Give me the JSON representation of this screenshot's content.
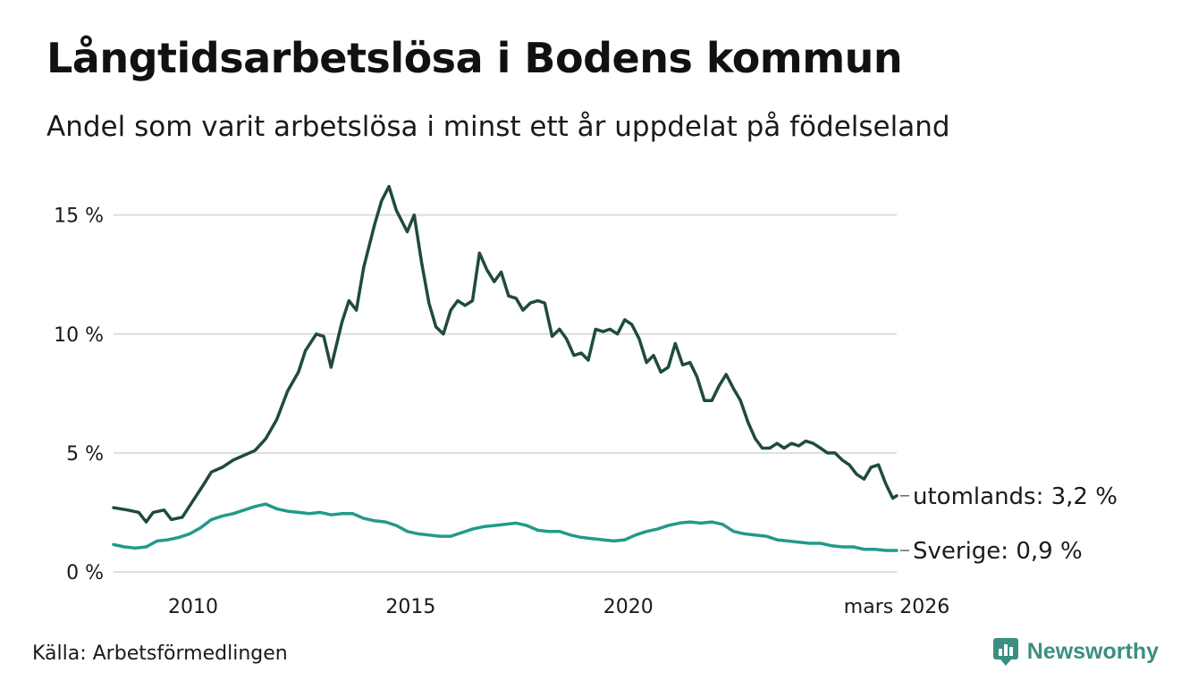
{
  "header": {
    "title": "Långtidsarbetslösa i Bodens kommun",
    "subtitle": "Andel som varit arbetslösa i minst ett år uppdelat på födelseland"
  },
  "footer": {
    "source": "Källa: Arbetsförmedlingen",
    "brand": "Newsworthy"
  },
  "colors": {
    "foreign": "#1f4a40",
    "sweden": "#229a8a",
    "grid": "#dddddd",
    "brand": "#3a8f82"
  },
  "chart_data": {
    "type": "line",
    "title": "Långtidsarbetslösa i Bodens kommun",
    "xlabel": "",
    "ylabel": "",
    "xlim": [
      2008.17,
      2026.17
    ],
    "ylim": [
      0,
      16
    ],
    "y_ticks": [
      0,
      5,
      10,
      15
    ],
    "y_tick_labels": [
      "0 %",
      "5 %",
      "10 %",
      "15 %"
    ],
    "x_ticks": [
      2010,
      2015,
      2020,
      2026.17
    ],
    "x_tick_labels": [
      "2010",
      "2015",
      "2020",
      "mars 2026"
    ],
    "series": [
      {
        "name": "utomlands",
        "end_label": "utomlands: 3,2 %",
        "points": [
          [
            2008.17,
            2.7
          ],
          [
            2008.5,
            2.6
          ],
          [
            2008.75,
            2.5
          ],
          [
            2008.92,
            2.1
          ],
          [
            2009.08,
            2.5
          ],
          [
            2009.33,
            2.6
          ],
          [
            2009.5,
            2.2
          ],
          [
            2009.75,
            2.3
          ],
          [
            2010.0,
            3.0
          ],
          [
            2010.25,
            3.7
          ],
          [
            2010.42,
            4.2
          ],
          [
            2010.67,
            4.4
          ],
          [
            2010.92,
            4.7
          ],
          [
            2011.17,
            4.9
          ],
          [
            2011.42,
            5.1
          ],
          [
            2011.67,
            5.6
          ],
          [
            2011.92,
            6.4
          ],
          [
            2012.17,
            7.6
          ],
          [
            2012.42,
            8.4
          ],
          [
            2012.58,
            9.3
          ],
          [
            2012.83,
            10.0
          ],
          [
            2013.0,
            9.9
          ],
          [
            2013.17,
            8.6
          ],
          [
            2013.42,
            10.5
          ],
          [
            2013.58,
            11.4
          ],
          [
            2013.75,
            11.0
          ],
          [
            2013.92,
            12.8
          ],
          [
            2014.17,
            14.6
          ],
          [
            2014.33,
            15.6
          ],
          [
            2014.5,
            16.2
          ],
          [
            2014.67,
            15.2
          ],
          [
            2014.92,
            14.3
          ],
          [
            2015.08,
            15.0
          ],
          [
            2015.25,
            13.0
          ],
          [
            2015.42,
            11.3
          ],
          [
            2015.58,
            10.3
          ],
          [
            2015.75,
            10.0
          ],
          [
            2015.92,
            11.0
          ],
          [
            2016.08,
            11.4
          ],
          [
            2016.25,
            11.2
          ],
          [
            2016.42,
            11.4
          ],
          [
            2016.58,
            13.4
          ],
          [
            2016.75,
            12.7
          ],
          [
            2016.92,
            12.2
          ],
          [
            2017.08,
            12.6
          ],
          [
            2017.25,
            11.6
          ],
          [
            2017.42,
            11.5
          ],
          [
            2017.58,
            11.0
          ],
          [
            2017.75,
            11.3
          ],
          [
            2017.92,
            11.4
          ],
          [
            2018.08,
            11.3
          ],
          [
            2018.25,
            9.9
          ],
          [
            2018.42,
            10.2
          ],
          [
            2018.58,
            9.8
          ],
          [
            2018.75,
            9.1
          ],
          [
            2018.92,
            9.2
          ],
          [
            2019.08,
            8.9
          ],
          [
            2019.25,
            10.2
          ],
          [
            2019.42,
            10.1
          ],
          [
            2019.58,
            10.2
          ],
          [
            2019.75,
            10.0
          ],
          [
            2019.92,
            10.6
          ],
          [
            2020.08,
            10.4
          ],
          [
            2020.25,
            9.8
          ],
          [
            2020.42,
            8.8
          ],
          [
            2020.58,
            9.1
          ],
          [
            2020.75,
            8.4
          ],
          [
            2020.92,
            8.6
          ],
          [
            2021.08,
            9.6
          ],
          [
            2021.25,
            8.7
          ],
          [
            2021.42,
            8.8
          ],
          [
            2021.58,
            8.2
          ],
          [
            2021.75,
            7.2
          ],
          [
            2021.92,
            7.2
          ],
          [
            2022.08,
            7.8
          ],
          [
            2022.25,
            8.3
          ],
          [
            2022.42,
            7.7
          ],
          [
            2022.58,
            7.2
          ],
          [
            2022.75,
            6.3
          ],
          [
            2022.92,
            5.6
          ],
          [
            2023.08,
            5.2
          ],
          [
            2023.25,
            5.2
          ],
          [
            2023.42,
            5.4
          ],
          [
            2023.58,
            5.2
          ],
          [
            2023.75,
            5.4
          ],
          [
            2023.92,
            5.3
          ],
          [
            2024.08,
            5.5
          ],
          [
            2024.25,
            5.4
          ],
          [
            2024.42,
            5.2
          ],
          [
            2024.58,
            5.0
          ],
          [
            2024.75,
            5.0
          ],
          [
            2024.92,
            4.7
          ],
          [
            2025.08,
            4.5
          ],
          [
            2025.25,
            4.1
          ],
          [
            2025.42,
            3.9
          ],
          [
            2025.58,
            4.4
          ],
          [
            2025.75,
            4.5
          ],
          [
            2025.92,
            3.7
          ],
          [
            2026.08,
            3.1
          ],
          [
            2026.17,
            3.2
          ]
        ]
      },
      {
        "name": "Sverige",
        "end_label": "Sverige: 0,9 %",
        "points": [
          [
            2008.17,
            1.15
          ],
          [
            2008.42,
            1.05
          ],
          [
            2008.67,
            1.0
          ],
          [
            2008.92,
            1.05
          ],
          [
            2009.17,
            1.3
          ],
          [
            2009.42,
            1.35
          ],
          [
            2009.67,
            1.45
          ],
          [
            2009.92,
            1.6
          ],
          [
            2010.17,
            1.85
          ],
          [
            2010.42,
            2.2
          ],
          [
            2010.67,
            2.35
          ],
          [
            2010.92,
            2.45
          ],
          [
            2011.17,
            2.6
          ],
          [
            2011.42,
            2.75
          ],
          [
            2011.67,
            2.85
          ],
          [
            2011.92,
            2.65
          ],
          [
            2012.17,
            2.55
          ],
          [
            2012.42,
            2.5
          ],
          [
            2012.67,
            2.45
          ],
          [
            2012.92,
            2.5
          ],
          [
            2013.17,
            2.4
          ],
          [
            2013.42,
            2.45
          ],
          [
            2013.67,
            2.45
          ],
          [
            2013.92,
            2.25
          ],
          [
            2014.17,
            2.15
          ],
          [
            2014.42,
            2.1
          ],
          [
            2014.67,
            1.95
          ],
          [
            2014.92,
            1.7
          ],
          [
            2015.17,
            1.6
          ],
          [
            2015.42,
            1.55
          ],
          [
            2015.67,
            1.5
          ],
          [
            2015.92,
            1.5
          ],
          [
            2016.17,
            1.65
          ],
          [
            2016.42,
            1.8
          ],
          [
            2016.67,
            1.9
          ],
          [
            2016.92,
            1.95
          ],
          [
            2017.17,
            2.0
          ],
          [
            2017.42,
            2.05
          ],
          [
            2017.67,
            1.95
          ],
          [
            2017.92,
            1.75
          ],
          [
            2018.17,
            1.7
          ],
          [
            2018.42,
            1.7
          ],
          [
            2018.67,
            1.55
          ],
          [
            2018.92,
            1.45
          ],
          [
            2019.17,
            1.4
          ],
          [
            2019.42,
            1.35
          ],
          [
            2019.67,
            1.3
          ],
          [
            2019.92,
            1.35
          ],
          [
            2020.17,
            1.55
          ],
          [
            2020.42,
            1.7
          ],
          [
            2020.67,
            1.8
          ],
          [
            2020.92,
            1.95
          ],
          [
            2021.17,
            2.05
          ],
          [
            2021.42,
            2.1
          ],
          [
            2021.67,
            2.05
          ],
          [
            2021.92,
            2.1
          ],
          [
            2022.17,
            2.0
          ],
          [
            2022.42,
            1.7
          ],
          [
            2022.67,
            1.6
          ],
          [
            2022.92,
            1.55
          ],
          [
            2023.17,
            1.5
          ],
          [
            2023.42,
            1.35
          ],
          [
            2023.67,
            1.3
          ],
          [
            2023.92,
            1.25
          ],
          [
            2024.17,
            1.2
          ],
          [
            2024.42,
            1.2
          ],
          [
            2024.67,
            1.1
          ],
          [
            2024.92,
            1.05
          ],
          [
            2025.17,
            1.05
          ],
          [
            2025.42,
            0.95
          ],
          [
            2025.67,
            0.95
          ],
          [
            2025.92,
            0.9
          ],
          [
            2026.17,
            0.9
          ]
        ]
      }
    ]
  }
}
